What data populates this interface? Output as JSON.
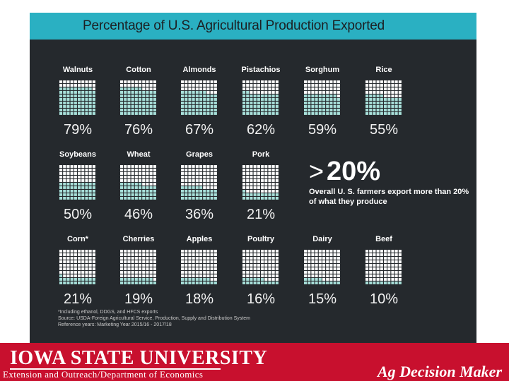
{
  "title": "Percentage of U.S. Agricultural Production Exported",
  "colors": {
    "title_band": "#2ab0c2",
    "background": "#25292d",
    "fill": "#a8e0da",
    "empty": "#ffffff",
    "footer": "#c8102e"
  },
  "items": [
    {
      "name": "Walnuts",
      "pct": "79%",
      "value": 79
    },
    {
      "name": "Cotton",
      "pct": "76%",
      "value": 76
    },
    {
      "name": "Almonds",
      "pct": "67%",
      "value": 67
    },
    {
      "name": "Pistachios",
      "pct": "62%",
      "value": 62
    },
    {
      "name": "Sorghum",
      "pct": "59%",
      "value": 59
    },
    {
      "name": "Rice",
      "pct": "55%",
      "value": 55
    },
    {
      "name": "Soybeans",
      "pct": "50%",
      "value": 50
    },
    {
      "name": "Wheat",
      "pct": "46%",
      "value": 46
    },
    {
      "name": "Grapes",
      "pct": "36%",
      "value": 36
    },
    {
      "name": "Pork",
      "pct": "21%",
      "value": 21
    },
    {
      "name": "Corn*",
      "pct": "21%",
      "value": 21
    },
    {
      "name": "Cherries",
      "pct": "19%",
      "value": 19
    },
    {
      "name": "Apples",
      "pct": "18%",
      "value": 18
    },
    {
      "name": "Poultry",
      "pct": "16%",
      "value": 16
    },
    {
      "name": "Dairy",
      "pct": "15%",
      "value": 15
    },
    {
      "name": "Beef",
      "pct": "10%",
      "value": 10
    }
  ],
  "callout": {
    "gt": ">",
    "value": "20%",
    "text": "Overall U. S. farmers export more than 20% of what they produce"
  },
  "notes": [
    "*Including ethanol, DDGS, and HFCS exports",
    "Source: USDA-Foreign Agricultural Service, Production, Supply and Distribution System",
    "Reference years: Marketing Year 2015/16 - 2017/18"
  ],
  "footer": {
    "university": "IOWA STATE UNIVERSITY",
    "department": "Extension and Outreach/Department of Economics",
    "brand": "Ag Decision Maker"
  }
}
